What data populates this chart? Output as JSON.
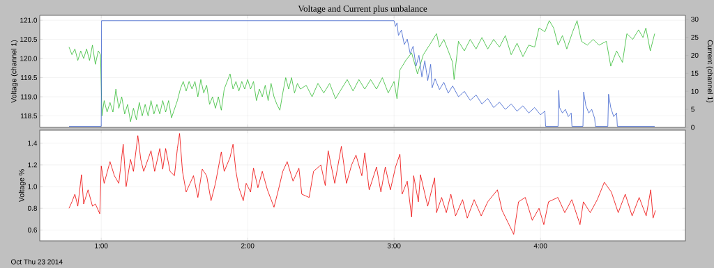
{
  "chart_data": [
    {
      "type": "line",
      "title": "Voltage and Current plus unbalance",
      "ylabel": "Voltage (channel 1)",
      "y2label": "Current (channel 1)",
      "xlim": [
        0.58,
        4.99
      ],
      "xticks": [
        1,
        2,
        3,
        4
      ],
      "ylim": [
        118.2,
        121.13
      ],
      "yticks": [
        118.5,
        {
          "value": 119,
          "label": "119.0"
        },
        119.5,
        {
          "value": 120,
          "label": "120.0"
        },
        120.5,
        {
          "value": 121,
          "label": "121.0"
        }
      ],
      "y2lim": [
        0,
        31.1
      ],
      "y2ticks": [
        0,
        5,
        10,
        15,
        20,
        25,
        30
      ],
      "grid": true,
      "tick_labels": "y",
      "series": [
        {
          "color": "#33bb33",
          "x": [
            0.78,
            0.8,
            0.82,
            0.84,
            0.86,
            0.88,
            0.9,
            0.92,
            0.94,
            0.96,
            0.98,
            0.995,
            1.005,
            1.02,
            1.04,
            1.06,
            1.08,
            1.1,
            1.12,
            1.14,
            1.16,
            1.18,
            1.2,
            1.22,
            1.24,
            1.26,
            1.28,
            1.3,
            1.32,
            1.34,
            1.36,
            1.38,
            1.4,
            1.42,
            1.44,
            1.46,
            1.48,
            1.52,
            1.54,
            1.56,
            1.58,
            1.6,
            1.62,
            1.64,
            1.66,
            1.68,
            1.7,
            1.72,
            1.74,
            1.76,
            1.78,
            1.8,
            1.82,
            1.84,
            1.86,
            1.88,
            1.9,
            1.92,
            1.94,
            1.96,
            1.98,
            2.0,
            2.02,
            2.04,
            2.06,
            2.08,
            2.1,
            2.12,
            2.14,
            2.16,
            2.18,
            2.2,
            2.22,
            2.24,
            2.26,
            2.28,
            2.3,
            2.32,
            2.34,
            2.36,
            2.4,
            2.44,
            2.48,
            2.52,
            2.56,
            2.6,
            2.64,
            2.68,
            2.72,
            2.76,
            2.8,
            2.84,
            2.88,
            2.92,
            2.96,
            3.0,
            3.02,
            3.04,
            3.08,
            3.12,
            3.16,
            3.2,
            3.25,
            3.29,
            3.31,
            3.34,
            3.37,
            3.4,
            3.41,
            3.44,
            3.48,
            3.52,
            3.56,
            3.6,
            3.64,
            3.68,
            3.72,
            3.76,
            3.8,
            3.84,
            3.88,
            3.92,
            3.96,
            3.99,
            4.03,
            4.06,
            4.09,
            4.12,
            4.15,
            4.18,
            4.22,
            4.25,
            4.28,
            4.32,
            4.36,
            4.4,
            4.45,
            4.48,
            4.52,
            4.56,
            4.59,
            4.63,
            4.67,
            4.7,
            4.72,
            4.75,
            4.78
          ],
          "values": [
            120.3,
            120.1,
            120.25,
            119.95,
            120.2,
            120.0,
            120.25,
            119.95,
            120.35,
            119.85,
            120.2,
            120.1,
            118.5,
            118.9,
            118.6,
            118.85,
            118.6,
            119.2,
            118.7,
            119.0,
            118.55,
            118.8,
            118.35,
            118.7,
            118.4,
            118.85,
            118.5,
            118.8,
            118.5,
            118.9,
            118.55,
            118.8,
            118.55,
            118.9,
            118.6,
            118.9,
            118.45,
            118.9,
            119.2,
            119.4,
            119.15,
            119.4,
            119.2,
            119.4,
            119.0,
            119.45,
            119.1,
            119.3,
            118.8,
            119.0,
            118.7,
            119.0,
            118.65,
            119.2,
            119.4,
            119.6,
            119.2,
            119.4,
            119.15,
            119.4,
            119.2,
            119.45,
            119.2,
            119.4,
            118.9,
            119.2,
            119.0,
            119.3,
            118.9,
            119.35,
            119.0,
            118.8,
            118.65,
            119.1,
            119.5,
            119.2,
            119.5,
            119.1,
            119.35,
            119.2,
            119.3,
            119.0,
            119.35,
            119.1,
            119.35,
            118.95,
            119.2,
            119.45,
            119.15,
            119.45,
            119.2,
            119.45,
            119.2,
            119.5,
            119.1,
            119.4,
            118.95,
            119.7,
            119.95,
            120.15,
            119.6,
            120.1,
            120.4,
            120.65,
            120.3,
            120.5,
            120.2,
            119.9,
            119.45,
            120.45,
            120.2,
            120.5,
            120.25,
            120.55,
            120.25,
            120.5,
            120.3,
            120.6,
            120.1,
            120.4,
            120.05,
            120.35,
            120.3,
            120.8,
            120.7,
            120.99,
            120.8,
            120.35,
            120.6,
            120.25,
            120.7,
            120.99,
            120.45,
            120.35,
            120.5,
            120.35,
            120.45,
            119.8,
            120.2,
            119.9,
            120.65,
            120.5,
            120.75,
            120.55,
            120.8,
            120.2,
            120.65
          ]
        },
        {
          "color": "#3a5fcd",
          "axis": "y2",
          "x": [
            0.78,
            1.0,
            1.002,
            1.5,
            2.0,
            2.5,
            3.0,
            3.01,
            3.02,
            3.03,
            3.05,
            3.07,
            3.09,
            3.11,
            3.13,
            3.15,
            3.17,
            3.19,
            3.21,
            3.23,
            3.25,
            3.26,
            3.28,
            3.31,
            3.34,
            3.37,
            3.4,
            3.44,
            3.48,
            3.52,
            3.56,
            3.6,
            3.64,
            3.68,
            3.72,
            3.76,
            3.8,
            3.84,
            3.88,
            3.92,
            3.96,
            4.0,
            4.03,
            4.035,
            4.12,
            4.125,
            4.13,
            4.15,
            4.17,
            4.19,
            4.21,
            4.215,
            4.29,
            4.295,
            4.31,
            4.33,
            4.35,
            4.37,
            4.375,
            4.46,
            4.465,
            4.48,
            4.5,
            4.52,
            4.525,
            4.78
          ],
          "values": [
            0.3,
            0.3,
            29.6,
            29.6,
            29.6,
            29.6,
            29.6,
            28.0,
            29.0,
            25.5,
            27.0,
            23.0,
            24.5,
            20.5,
            22.5,
            17.0,
            20.0,
            14.0,
            18.5,
            13.0,
            17.5,
            11.0,
            13.5,
            10.5,
            12.5,
            9.5,
            11.5,
            8.5,
            10.0,
            7.5,
            9.0,
            6.5,
            8.0,
            5.5,
            7.0,
            5.0,
            6.5,
            4.5,
            6.0,
            4.0,
            5.5,
            3.5,
            4.5,
            0.3,
            0.3,
            10.3,
            5.5,
            4.0,
            5.0,
            3.0,
            4.0,
            0.3,
            0.3,
            9.8,
            6.0,
            4.0,
            5.0,
            2.5,
            0.3,
            0.3,
            9.2,
            5.5,
            3.0,
            4.0,
            0.3,
            0.3
          ]
        }
      ]
    },
    {
      "type": "line",
      "ylabel": "Voltage %",
      "annotations": [
        "Oct Thu 23 2014"
      ],
      "xlim": [
        0.58,
        4.99
      ],
      "xticks": [
        {
          "value": 1,
          "label": "1:00"
        },
        {
          "value": 2,
          "label": "2:00"
        },
        {
          "value": 3,
          "label": "3:00"
        },
        {
          "value": 4,
          "label": "4:00"
        }
      ],
      "ylim": [
        0.5,
        1.52
      ],
      "yticks": [
        0.6,
        0.8,
        {
          "value": 1,
          "label": "1.0"
        },
        1.2,
        1.4
      ],
      "grid": true,
      "series": [
        {
          "color": "#ee0000",
          "x": [
            0.78,
            0.8,
            0.82,
            0.84,
            0.865,
            0.88,
            0.91,
            0.94,
            0.96,
            0.99,
            1.0,
            1.02,
            1.06,
            1.09,
            1.12,
            1.15,
            1.17,
            1.2,
            1.22,
            1.25,
            1.27,
            1.29,
            1.34,
            1.365,
            1.4,
            1.42,
            1.44,
            1.47,
            1.5,
            1.52,
            1.535,
            1.555,
            1.58,
            1.63,
            1.66,
            1.69,
            1.72,
            1.75,
            1.78,
            1.82,
            1.84,
            1.88,
            1.9,
            1.92,
            1.94,
            1.97,
            1.99,
            2.02,
            2.04,
            2.07,
            2.1,
            2.135,
            2.18,
            2.21,
            2.24,
            2.27,
            2.31,
            2.35,
            2.37,
            2.42,
            2.45,
            2.5,
            2.53,
            2.55,
            2.595,
            2.64,
            2.675,
            2.71,
            2.74,
            2.78,
            2.8,
            2.83,
            2.88,
            2.91,
            2.94,
            2.975,
            3.01,
            3.04,
            3.055,
            3.09,
            3.12,
            3.134,
            3.166,
            3.18,
            3.23,
            3.277,
            3.29,
            3.325,
            3.357,
            3.388,
            3.42,
            3.468,
            3.5,
            3.547,
            3.595,
            3.64,
            3.706,
            3.738,
            3.785,
            3.817,
            3.85,
            3.896,
            3.944,
            3.99,
            4.023,
            4.055,
            4.119,
            4.166,
            4.214,
            4.27,
            4.293,
            4.34,
            4.388,
            4.436,
            4.484,
            4.531,
            4.579,
            4.626,
            4.674,
            4.722,
            4.753,
            4.769,
            4.785
          ],
          "values": [
            0.8,
            0.86,
            0.93,
            0.82,
            1.11,
            0.84,
            0.97,
            0.82,
            0.84,
            0.75,
            1.19,
            1.03,
            1.23,
            1.1,
            1.03,
            1.39,
            1.0,
            1.25,
            1.14,
            1.47,
            1.25,
            1.14,
            1.33,
            1.14,
            1.35,
            1.16,
            1.35,
            1.14,
            1.1,
            1.35,
            1.49,
            1.14,
            0.95,
            1.1,
            0.9,
            1.16,
            1.1,
            0.87,
            1.03,
            1.32,
            1.14,
            1.27,
            1.39,
            1.14,
            0.99,
            0.87,
            1.03,
            0.95,
            1.17,
            0.99,
            1.14,
            0.97,
            0.81,
            0.97,
            1.14,
            1.23,
            1.05,
            1.17,
            0.93,
            0.9,
            1.14,
            1.2,
            1.01,
            1.33,
            1.03,
            1.37,
            1.03,
            1.2,
            1.29,
            1.1,
            1.31,
            0.97,
            1.18,
            0.95,
            1.18,
            0.97,
            1.18,
            1.3,
            0.93,
            1.05,
            0.72,
            1.1,
            0.86,
            1.11,
            0.82,
            1.08,
            0.76,
            0.9,
            0.76,
            0.93,
            0.73,
            0.88,
            0.71,
            0.88,
            0.73,
            0.86,
            0.97,
            0.78,
            0.65,
            0.56,
            0.86,
            0.9,
            0.69,
            0.8,
            0.65,
            0.86,
            0.9,
            0.76,
            0.88,
            0.65,
            0.86,
            0.76,
            0.88,
            1.04,
            0.95,
            0.76,
            0.93,
            0.73,
            0.9,
            0.73,
            0.97,
            0.71,
            0.78
          ]
        }
      ]
    }
  ]
}
